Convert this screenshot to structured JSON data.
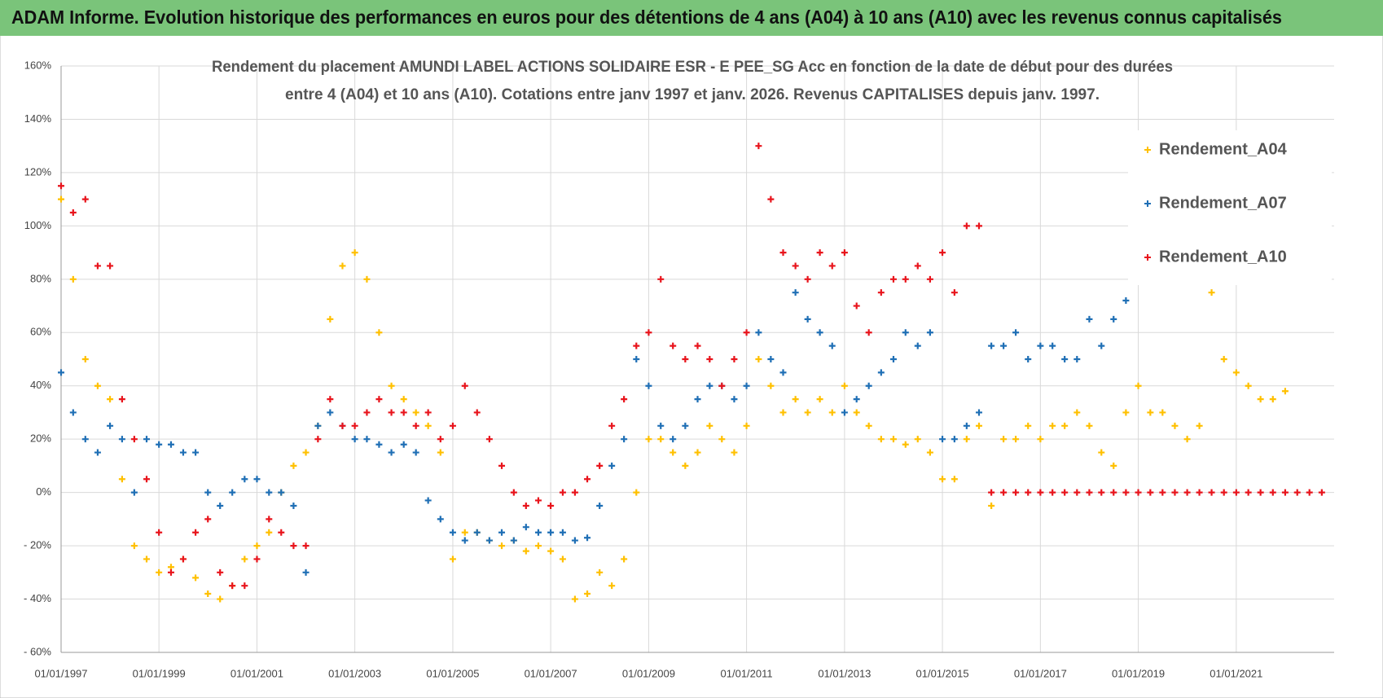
{
  "chart_data": {
    "type": "scatter",
    "title": "ADAM Informe. Evolution historique des performances en euros pour des détentions de 4 ans (A04) à 10 ans (A10) avec les revenus connus capitalisés",
    "subtitle": [
      "Rendement du placement AMUNDI LABEL ACTIONS SOLIDAIRE ESR - E PEE_SG Acc en fonction de la date de début pour des durées",
      "entre 4 (A04) et 10 ans (A10). Cotations entre janv 1997 et janv. 2026. Revenus CAPITALISES depuis janv. 1997."
    ],
    "x": [
      "1997-01-01",
      "1997-04-01",
      "1997-07-01",
      "1997-10-01",
      "1998-01-01",
      "1998-04-01",
      "1998-07-01",
      "1998-10-01",
      "1999-01-01",
      "1999-04-01",
      "1999-07-01",
      "1999-10-01",
      "2000-01-01",
      "2000-04-01",
      "2000-07-01",
      "2000-10-01",
      "2001-01-01",
      "2001-04-01",
      "2001-07-01",
      "2001-10-01",
      "2002-01-01",
      "2002-04-01",
      "2002-07-01",
      "2002-10-01",
      "2003-01-01",
      "2003-04-01",
      "2003-07-01",
      "2003-10-01",
      "2004-01-01",
      "2004-04-01",
      "2004-07-01",
      "2004-10-01",
      "2005-01-01",
      "2005-04-01",
      "2005-07-01",
      "2005-10-01",
      "2006-01-01",
      "2006-04-01",
      "2006-07-01",
      "2006-10-01",
      "2007-01-01",
      "2007-04-01",
      "2007-07-01",
      "2007-10-01",
      "2008-01-01",
      "2008-04-01",
      "2008-07-01",
      "2008-10-01",
      "2009-01-01",
      "2009-04-01",
      "2009-07-01",
      "2009-10-01",
      "2010-01-01",
      "2010-04-01",
      "2010-07-01",
      "2010-10-01",
      "2011-01-01",
      "2011-04-01",
      "2011-07-01",
      "2011-10-01",
      "2012-01-01",
      "2012-04-01",
      "2012-07-01",
      "2012-10-01",
      "2013-01-01",
      "2013-04-01",
      "2013-07-01",
      "2013-10-01",
      "2014-01-01",
      "2014-04-01",
      "2014-07-01",
      "2014-10-01",
      "2015-01-01",
      "2015-04-01",
      "2015-07-01",
      "2015-10-01",
      "2016-01-01",
      "2016-04-01",
      "2016-07-01",
      "2016-10-01",
      "2017-01-01",
      "2017-04-01",
      "2017-07-01",
      "2017-10-01",
      "2018-01-01",
      "2018-04-01",
      "2018-07-01",
      "2018-10-01",
      "2019-01-01",
      "2019-04-01",
      "2019-07-01",
      "2019-10-01",
      "2020-01-01",
      "2020-04-01",
      "2020-07-01",
      "2020-10-01",
      "2021-01-01",
      "2021-04-01",
      "2021-07-01",
      "2021-10-01",
      "2022-01-01",
      "2022-04-01",
      "2022-07-01",
      "2022-10-01"
    ],
    "series": [
      {
        "name": "Rendement_A04",
        "color": "#ffc000",
        "values": [
          110,
          80,
          50,
          40,
          35,
          5,
          -20,
          -25,
          -30,
          -28,
          -25,
          -32,
          -38,
          -40,
          -35,
          -25,
          -20,
          -15,
          0,
          10,
          15,
          25,
          65,
          85,
          90,
          80,
          60,
          40,
          35,
          30,
          25,
          15,
          -25,
          -15,
          -15,
          -18,
          -20,
          -18,
          -22,
          -20,
          -22,
          -25,
          -40,
          -38,
          -30,
          -35,
          -25,
          0,
          20,
          20,
          15,
          10,
          15,
          25,
          20,
          15,
          25,
          50,
          40,
          30,
          35,
          30,
          35,
          30,
          40,
          30,
          25,
          20,
          20,
          18,
          20,
          15,
          5,
          5,
          20,
          25,
          -5,
          20,
          20,
          25,
          20,
          25,
          25,
          30,
          25,
          15,
          10,
          30,
          40,
          30,
          30,
          25,
          20,
          25,
          75,
          50,
          45,
          40,
          35,
          35,
          38,
          null,
          null,
          null
        ]
      },
      {
        "name": "Rendement_A07",
        "color": "#1f6fb5",
        "values": [
          45,
          30,
          20,
          15,
          25,
          20,
          0,
          20,
          18,
          18,
          15,
          15,
          0,
          -5,
          0,
          5,
          5,
          0,
          0,
          -5,
          -30,
          25,
          30,
          25,
          20,
          20,
          18,
          15,
          18,
          15,
          -3,
          -10,
          -15,
          -18,
          -15,
          -18,
          -15,
          -18,
          -13,
          -15,
          -15,
          -15,
          -18,
          -17,
          -5,
          10,
          20,
          50,
          40,
          25,
          20,
          25,
          35,
          40,
          40,
          35,
          40,
          60,
          50,
          45,
          75,
          65,
          60,
          55,
          30,
          35,
          40,
          45,
          50,
          60,
          55,
          60,
          20,
          20,
          25,
          30,
          55,
          55,
          60,
          50,
          55,
          55,
          50,
          50,
          65,
          55,
          65,
          72,
          null,
          null,
          null,
          null,
          null,
          null,
          null,
          null,
          null,
          null,
          null,
          null,
          null,
          null,
          null,
          null
        ]
      },
      {
        "name": "Rendement_A10",
        "color": "#e8141c",
        "values": [
          115,
          105,
          110,
          85,
          85,
          35,
          20,
          5,
          -15,
          -30,
          -25,
          -15,
          -10,
          -30,
          -35,
          -35,
          -25,
          -10,
          -15,
          -20,
          -20,
          20,
          35,
          25,
          25,
          30,
          35,
          30,
          30,
          25,
          30,
          20,
          25,
          40,
          30,
          20,
          10,
          0,
          -5,
          -3,
          -5,
          0,
          0,
          5,
          10,
          25,
          35,
          55,
          60,
          80,
          55,
          50,
          55,
          50,
          40,
          50,
          60,
          130,
          110,
          90,
          85,
          80,
          90,
          85,
          90,
          70,
          60,
          75,
          80,
          80,
          85,
          80,
          90,
          75,
          100,
          100,
          0,
          0,
          0,
          0,
          0,
          0,
          0,
          0,
          0,
          0,
          0,
          0,
          0,
          0,
          0,
          0,
          0,
          0,
          0,
          0,
          0,
          0,
          0,
          0,
          0,
          0,
          0,
          0
        ]
      }
    ],
    "xlim": [
      "1997-01-01",
      "2023-01-01"
    ],
    "xticks": [
      {
        "value": "1997-01-01",
        "label": "01/01/1997"
      },
      {
        "value": "1999-01-01",
        "label": "01/01/1999"
      },
      {
        "value": "2001-01-01",
        "label": "01/01/2001"
      },
      {
        "value": "2003-01-01",
        "label": "01/01/2003"
      },
      {
        "value": "2005-01-01",
        "label": "01/01/2005"
      },
      {
        "value": "2007-01-01",
        "label": "01/01/2007"
      },
      {
        "value": "2009-01-01",
        "label": "01/01/2009"
      },
      {
        "value": "2011-01-01",
        "label": "01/01/2011"
      },
      {
        "value": "2013-01-01",
        "label": "01/01/2013"
      },
      {
        "value": "2015-01-01",
        "label": "01/01/2015"
      },
      {
        "value": "2017-01-01",
        "label": "01/01/2017"
      },
      {
        "value": "2019-01-01",
        "label": "01/01/2019"
      },
      {
        "value": "2021-01-01",
        "label": "01/01/2021"
      }
    ],
    "ylim": [
      -60,
      160
    ],
    "yticks": [
      {
        "value": -60,
        "label": "- 60%"
      },
      {
        "value": -40,
        "label": "- 40%"
      },
      {
        "value": -20,
        "label": "- 20%"
      },
      {
        "value": 0,
        "label": "0%"
      },
      {
        "value": 20,
        "label": "20%"
      },
      {
        "value": 40,
        "label": "40%"
      },
      {
        "value": 60,
        "label": "60%"
      },
      {
        "value": 80,
        "label": "80%"
      },
      {
        "value": 100,
        "label": "100%"
      },
      {
        "value": 120,
        "label": "120%"
      },
      {
        "value": 140,
        "label": "140%"
      },
      {
        "value": 160,
        "label": "160%"
      }
    ],
    "grid": true,
    "legend": "upper right"
  }
}
